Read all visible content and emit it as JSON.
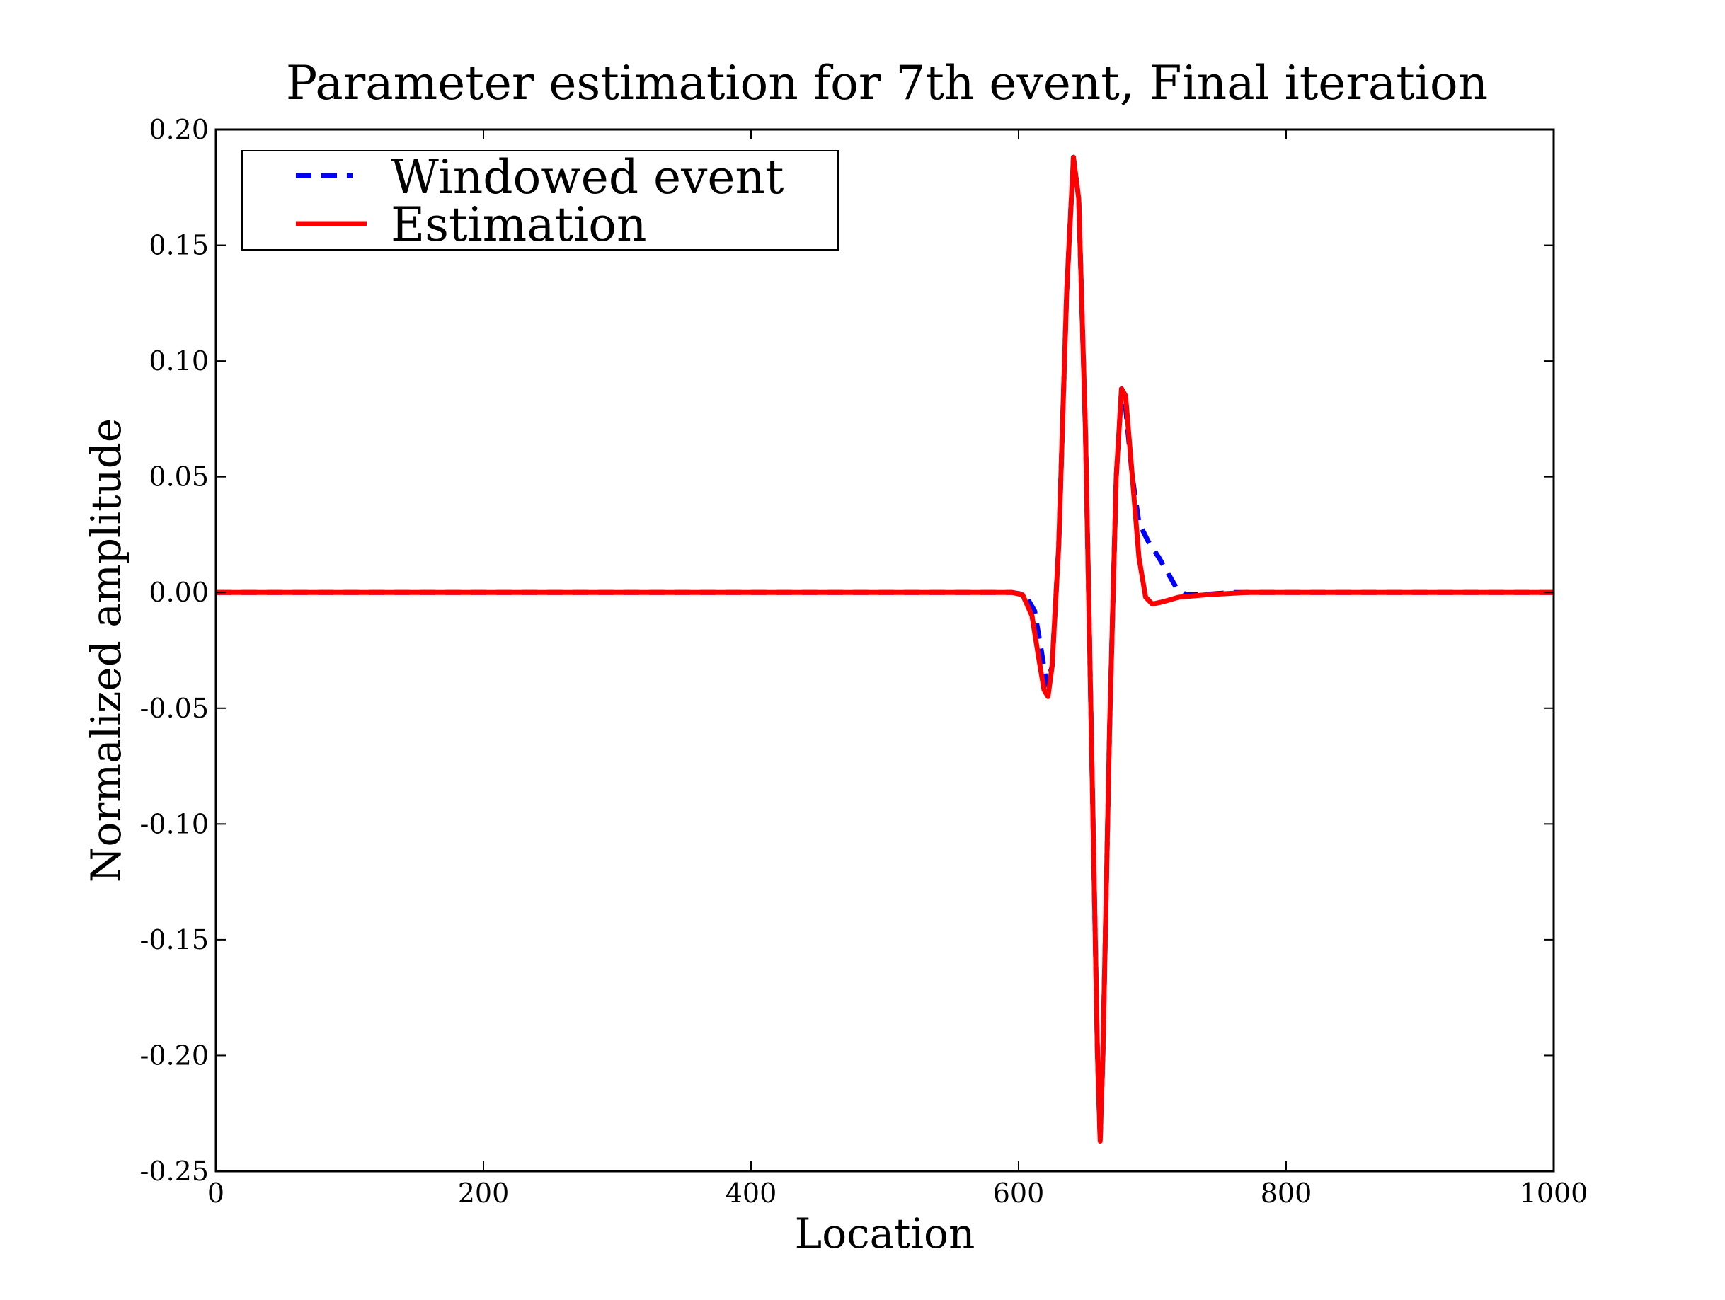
{
  "chart_data": {
    "type": "line",
    "title": "Parameter estimation for 7th event, Final iteration",
    "xlabel": "Location",
    "ylabel": "Normalized amplitude",
    "xlim": [
      0,
      1000
    ],
    "ylim": [
      -0.25,
      0.2
    ],
    "xticks": [
      0,
      200,
      400,
      600,
      800,
      1000
    ],
    "xtick_labels": [
      "0",
      "200",
      "400",
      "600",
      "800",
      "1000"
    ],
    "yticks": [
      0.2,
      0.15,
      0.1,
      0.05,
      0.0,
      -0.05,
      -0.1,
      -0.15,
      -0.2,
      -0.25
    ],
    "ytick_labels": [
      "0.20",
      "0.15",
      "0.10",
      "0.05",
      "0.00",
      "-0.05",
      "-0.10",
      "-0.15",
      "-0.20",
      "-0.25"
    ],
    "grid": false,
    "legend_position": "top-left",
    "series": [
      {
        "name": "Windowed event",
        "color": "#0000ff",
        "style": "dashed",
        "points": [
          [
            0,
            0
          ],
          [
            595,
            0
          ],
          [
            605,
            -0.001
          ],
          [
            612,
            -0.008
          ],
          [
            617,
            -0.025
          ],
          [
            621,
            -0.04
          ],
          [
            625,
            -0.032
          ],
          [
            630,
            0.02
          ],
          [
            636,
            0.13
          ],
          [
            641,
            0.188
          ],
          [
            645,
            0.17
          ],
          [
            650,
            0.07
          ],
          [
            655,
            -0.08
          ],
          [
            659,
            -0.2
          ],
          [
            661,
            -0.237
          ],
          [
            663,
            -0.2
          ],
          [
            668,
            -0.06
          ],
          [
            673,
            0.05
          ],
          [
            677,
            0.088
          ],
          [
            680,
            0.08
          ],
          [
            685,
            0.05
          ],
          [
            690,
            0.03
          ],
          [
            697,
            0.022
          ],
          [
            705,
            0.015
          ],
          [
            712,
            0.008
          ],
          [
            718,
            0.002
          ],
          [
            725,
            -0.001
          ],
          [
            735,
            -0.001
          ],
          [
            760,
            0
          ],
          [
            1000,
            0
          ]
        ]
      },
      {
        "name": "Estimation",
        "color": "#ff0000",
        "style": "solid",
        "points": [
          [
            0,
            0
          ],
          [
            595,
            0
          ],
          [
            603,
            -0.001
          ],
          [
            610,
            -0.01
          ],
          [
            615,
            -0.028
          ],
          [
            619,
            -0.042
          ],
          [
            622,
            -0.045
          ],
          [
            625,
            -0.032
          ],
          [
            630,
            0.02
          ],
          [
            636,
            0.13
          ],
          [
            641,
            0.188
          ],
          [
            645,
            0.17
          ],
          [
            650,
            0.07
          ],
          [
            655,
            -0.08
          ],
          [
            659,
            -0.2
          ],
          [
            661,
            -0.237
          ],
          [
            663,
            -0.2
          ],
          [
            668,
            -0.06
          ],
          [
            673,
            0.05
          ],
          [
            677,
            0.088
          ],
          [
            680,
            0.085
          ],
          [
            685,
            0.05
          ],
          [
            690,
            0.015
          ],
          [
            695,
            -0.002
          ],
          [
            700,
            -0.005
          ],
          [
            708,
            -0.004
          ],
          [
            720,
            -0.002
          ],
          [
            740,
            -0.001
          ],
          [
            770,
            0
          ],
          [
            1000,
            0
          ]
        ]
      }
    ]
  }
}
